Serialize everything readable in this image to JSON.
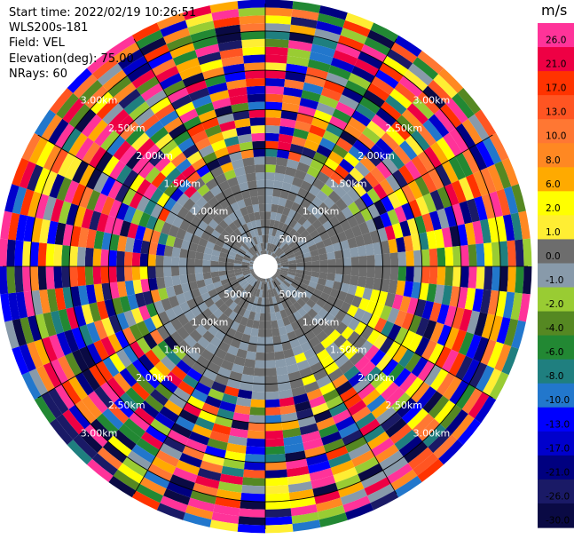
{
  "info": {
    "start_time": "Start time: 2022/02/19 10:26:51",
    "instrument": "WLS200s-181",
    "field": "Field: VEL",
    "elevation": "Elevation(deg): 75.00",
    "nrays": "NRays: 60"
  },
  "chart_data": {
    "type": "heatmap",
    "projection": "polar-ppi",
    "title": "",
    "field": "VEL",
    "n_rays": 60,
    "range_rings": [
      {
        "value": 500,
        "label": "500m"
      },
      {
        "value": 1000,
        "label": "1.00km"
      },
      {
        "value": 1500,
        "label": "1.50km"
      },
      {
        "value": 2000,
        "label": "2.00km"
      },
      {
        "value": 2500,
        "label": "2.50km"
      },
      {
        "value": 3000,
        "label": "3.00km"
      }
    ],
    "max_range_m": 3350,
    "colorbar": {
      "unit": "m/s",
      "levels": [
        {
          "label": "26.0",
          "color": "#ff3399"
        },
        {
          "label": "21.0",
          "color": "#ee0044"
        },
        {
          "label": "17.0",
          "color": "#ff3300"
        },
        {
          "label": "13.0",
          "color": "#ff5522"
        },
        {
          "label": "10.0",
          "color": "#ff7733"
        },
        {
          "label": "8.0",
          "color": "#ff8822"
        },
        {
          "label": "6.0",
          "color": "#ffaa00"
        },
        {
          "label": "2.0",
          "color": "#ffff00"
        },
        {
          "label": "1.0",
          "color": "#ffee33"
        },
        {
          "label": "0.0",
          "color": "#6d6d6d"
        },
        {
          "label": "-1.0",
          "color": "#889aaa"
        },
        {
          "label": "-2.0",
          "color": "#99cc33"
        },
        {
          "label": "-4.0",
          "color": "#558822"
        },
        {
          "label": "-6.0",
          "color": "#228833"
        },
        {
          "label": "-8.0",
          "color": "#1f7f7f"
        },
        {
          "label": "-10.0",
          "color": "#2277cc"
        },
        {
          "label": "-13.0",
          "color": "#0000ff"
        },
        {
          "label": "-17.0",
          "color": "#0000cc"
        },
        {
          "label": "-21.0",
          "color": "#000080"
        },
        {
          "label": "-26.0",
          "color": "#1a1a66"
        },
        {
          "label": "-30.0",
          "color": "#0a0a44"
        }
      ]
    }
  }
}
